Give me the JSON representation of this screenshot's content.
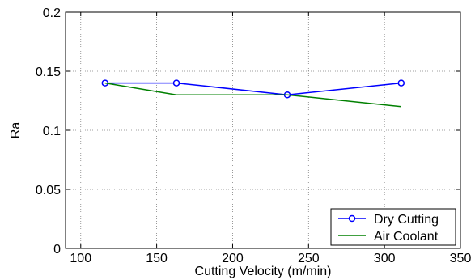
{
  "chart_data": {
    "type": "line",
    "xlabel": "Cutting Velocity (m/min)",
    "ylabel": "Ra",
    "xlim": [
      90,
      350
    ],
    "ylim": [
      0,
      0.2
    ],
    "xticks": [
      100,
      150,
      200,
      250,
      300,
      350
    ],
    "yticks": [
      0,
      0.05,
      0.1,
      0.15,
      0.2
    ],
    "xtick_labels": [
      "100",
      "150",
      "200",
      "250",
      "300",
      "350"
    ],
    "ytick_labels": [
      "0",
      "0.05",
      "0.1",
      "0.15",
      "0.2"
    ],
    "grid": true,
    "legend_position": "bottom-right",
    "series": [
      {
        "name": "Dry Cutting",
        "color": "#0000ff",
        "marker": "circle",
        "x": [
          116,
          163,
          236,
          311
        ],
        "y": [
          0.14,
          0.14,
          0.13,
          0.14
        ]
      },
      {
        "name": "Air Coolant",
        "color": "#008000",
        "marker": "none",
        "x": [
          116,
          163,
          236,
          311
        ],
        "y": [
          0.14,
          0.13,
          0.13,
          0.12
        ]
      }
    ]
  }
}
